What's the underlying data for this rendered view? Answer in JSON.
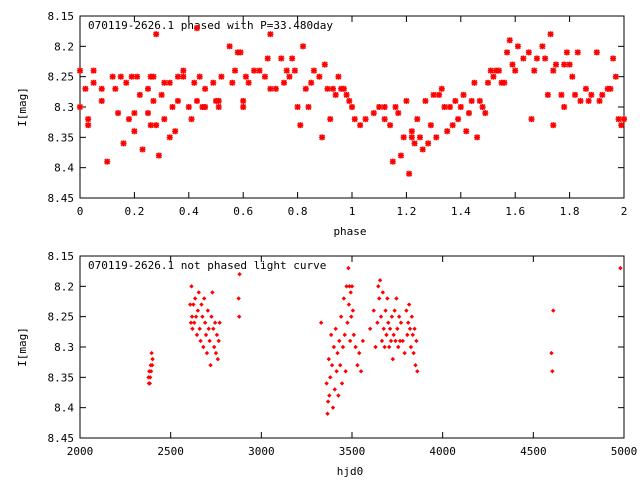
{
  "chart_data": [
    {
      "type": "scatter",
      "title": "070119-2626.1 phased with P=33.480day",
      "xlabel": "phase",
      "ylabel": "I[mag]",
      "xlim": [
        0,
        2
      ],
      "ylim": [
        8.15,
        8.45
      ],
      "y_inverted": true,
      "xticks": [
        "0",
        "0.2",
        "0.4",
        "0.6",
        "0.8",
        "1",
        "1.2",
        "1.4",
        "1.6",
        "1.8",
        "2"
      ],
      "yticks": [
        "8.15",
        "8.2",
        "8.25",
        "8.3",
        "8.35",
        "8.4",
        "8.45"
      ],
      "marker_color": "#ff0000",
      "marker": "asterisk",
      "points": [
        [
          0.0,
          8.3
        ],
        [
          0.0,
          8.24
        ],
        [
          0.02,
          8.27
        ],
        [
          0.03,
          8.32
        ],
        [
          0.03,
          8.33
        ],
        [
          0.05,
          8.26
        ],
        [
          0.05,
          8.24
        ],
        [
          0.08,
          8.29
        ],
        [
          0.08,
          8.27
        ],
        [
          0.1,
          8.39
        ],
        [
          0.12,
          8.25
        ],
        [
          0.13,
          8.27
        ],
        [
          0.14,
          8.31
        ],
        [
          0.15,
          8.25
        ],
        [
          0.16,
          8.36
        ],
        [
          0.17,
          8.26
        ],
        [
          0.18,
          8.32
        ],
        [
          0.19,
          8.25
        ],
        [
          0.2,
          8.31
        ],
        [
          0.2,
          8.34
        ],
        [
          0.21,
          8.25
        ],
        [
          0.22,
          8.28
        ],
        [
          0.23,
          8.37
        ],
        [
          0.25,
          8.31
        ],
        [
          0.25,
          8.27
        ],
        [
          0.26,
          8.33
        ],
        [
          0.26,
          8.25
        ],
        [
          0.27,
          8.25
        ],
        [
          0.27,
          8.29
        ],
        [
          0.28,
          8.33
        ],
        [
          0.28,
          8.18
        ],
        [
          0.29,
          8.38
        ],
        [
          0.3,
          8.28
        ],
        [
          0.31,
          8.32
        ],
        [
          0.31,
          8.26
        ],
        [
          0.33,
          8.35
        ],
        [
          0.33,
          8.26
        ],
        [
          0.34,
          8.3
        ],
        [
          0.35,
          8.34
        ],
        [
          0.36,
          8.29
        ],
        [
          0.36,
          8.25
        ],
        [
          0.38,
          8.25
        ],
        [
          0.38,
          8.24
        ],
        [
          0.4,
          8.3
        ],
        [
          0.41,
          8.32
        ],
        [
          0.42,
          8.26
        ],
        [
          0.43,
          8.17
        ],
        [
          0.43,
          8.29
        ],
        [
          0.44,
          8.25
        ],
        [
          0.45,
          8.3
        ],
        [
          0.46,
          8.27
        ],
        [
          0.46,
          8.3
        ],
        [
          0.49,
          8.26
        ],
        [
          0.5,
          8.29
        ],
        [
          0.51,
          8.29
        ],
        [
          0.51,
          8.3
        ],
        [
          0.52,
          8.25
        ],
        [
          0.55,
          8.2
        ],
        [
          0.56,
          8.26
        ],
        [
          0.57,
          8.24
        ],
        [
          0.58,
          8.21
        ],
        [
          0.59,
          8.21
        ],
        [
          0.6,
          8.29
        ],
        [
          0.6,
          8.3
        ],
        [
          0.61,
          8.25
        ],
        [
          0.62,
          8.26
        ],
        [
          0.64,
          8.24
        ],
        [
          0.66,
          8.24
        ],
        [
          0.68,
          8.25
        ],
        [
          0.69,
          8.22
        ],
        [
          0.7,
          8.27
        ],
        [
          0.7,
          8.18
        ],
        [
          0.72,
          8.27
        ],
        [
          0.74,
          8.22
        ],
        [
          0.75,
          8.26
        ],
        [
          0.76,
          8.24
        ],
        [
          0.77,
          8.25
        ],
        [
          0.78,
          8.22
        ],
        [
          0.79,
          8.24
        ],
        [
          0.8,
          8.3
        ],
        [
          0.81,
          8.33
        ],
        [
          0.82,
          8.2
        ],
        [
          0.83,
          8.27
        ],
        [
          0.84,
          8.3
        ],
        [
          0.85,
          8.26
        ],
        [
          0.86,
          8.24
        ],
        [
          0.88,
          8.25
        ],
        [
          0.89,
          8.35
        ],
        [
          0.9,
          8.23
        ],
        [
          0.91,
          8.27
        ],
        [
          0.92,
          8.32
        ],
        [
          0.93,
          8.27
        ],
        [
          0.94,
          8.28
        ],
        [
          0.95,
          8.25
        ],
        [
          0.96,
          8.27
        ],
        [
          0.97,
          8.27
        ],
        [
          0.98,
          8.28
        ],
        [
          0.99,
          8.29
        ],
        [
          1.0,
          8.3
        ],
        [
          1.01,
          8.32
        ],
        [
          1.03,
          8.33
        ],
        [
          1.05,
          8.32
        ],
        [
          1.08,
          8.31
        ],
        [
          1.1,
          8.3
        ],
        [
          1.12,
          8.3
        ],
        [
          1.12,
          8.32
        ],
        [
          1.14,
          8.33
        ],
        [
          1.15,
          8.39
        ],
        [
          1.16,
          8.3
        ],
        [
          1.17,
          8.31
        ],
        [
          1.18,
          8.38
        ],
        [
          1.19,
          8.35
        ],
        [
          1.2,
          8.29
        ],
        [
          1.21,
          8.41
        ],
        [
          1.22,
          8.35
        ],
        [
          1.22,
          8.34
        ],
        [
          1.23,
          8.36
        ],
        [
          1.24,
          8.32
        ],
        [
          1.25,
          8.35
        ],
        [
          1.26,
          8.37
        ],
        [
          1.27,
          8.29
        ],
        [
          1.28,
          8.36
        ],
        [
          1.29,
          8.33
        ],
        [
          1.3,
          8.28
        ],
        [
          1.31,
          8.35
        ],
        [
          1.32,
          8.28
        ],
        [
          1.33,
          8.27
        ],
        [
          1.34,
          8.3
        ],
        [
          1.35,
          8.34
        ],
        [
          1.36,
          8.3
        ],
        [
          1.37,
          8.33
        ],
        [
          1.38,
          8.29
        ],
        [
          1.39,
          8.32
        ],
        [
          1.4,
          8.3
        ],
        [
          1.41,
          8.28
        ],
        [
          1.42,
          8.34
        ],
        [
          1.43,
          8.31
        ],
        [
          1.44,
          8.29
        ],
        [
          1.45,
          8.26
        ],
        [
          1.46,
          8.35
        ],
        [
          1.47,
          8.29
        ],
        [
          1.48,
          8.3
        ],
        [
          1.49,
          8.31
        ],
        [
          1.5,
          8.26
        ],
        [
          1.51,
          8.24
        ],
        [
          1.52,
          8.25
        ],
        [
          1.53,
          8.24
        ],
        [
          1.54,
          8.24
        ],
        [
          1.55,
          8.26
        ],
        [
          1.56,
          8.26
        ],
        [
          1.57,
          8.21
        ],
        [
          1.58,
          8.19
        ],
        [
          1.59,
          8.23
        ],
        [
          1.6,
          8.24
        ],
        [
          1.61,
          8.2
        ],
        [
          1.63,
          8.22
        ],
        [
          1.65,
          8.21
        ],
        [
          1.66,
          8.32
        ],
        [
          1.67,
          8.24
        ],
        [
          1.68,
          8.22
        ],
        [
          1.7,
          8.2
        ],
        [
          1.71,
          8.22
        ],
        [
          1.72,
          8.28
        ],
        [
          1.73,
          8.18
        ],
        [
          1.74,
          8.24
        ],
        [
          1.74,
          8.33
        ],
        [
          1.75,
          8.23
        ],
        [
          1.77,
          8.28
        ],
        [
          1.78,
          8.3
        ],
        [
          1.78,
          8.23
        ],
        [
          1.79,
          8.21
        ],
        [
          1.8,
          8.23
        ],
        [
          1.81,
          8.25
        ],
        [
          1.82,
          8.28
        ],
        [
          1.83,
          8.21
        ],
        [
          1.84,
          8.29
        ],
        [
          1.86,
          8.27
        ],
        [
          1.87,
          8.29
        ],
        [
          1.88,
          8.28
        ],
        [
          1.9,
          8.21
        ],
        [
          1.91,
          8.29
        ],
        [
          1.92,
          8.28
        ],
        [
          1.94,
          8.27
        ],
        [
          1.95,
          8.27
        ],
        [
          1.96,
          8.22
        ],
        [
          1.97,
          8.25
        ],
        [
          1.98,
          8.32
        ],
        [
          1.99,
          8.33
        ],
        [
          2.0,
          8.32
        ]
      ]
    },
    {
      "type": "scatter",
      "title": "070119-2626.1 not phased light curve",
      "xlabel": "hjd0",
      "ylabel": "I[mag]",
      "xlim": [
        2000,
        5000
      ],
      "ylim": [
        8.15,
        8.45
      ],
      "y_inverted": true,
      "xticks": [
        "2000",
        "2500",
        "3000",
        "3500",
        "4000",
        "4500",
        "5000"
      ],
      "yticks": [
        "8.15",
        "8.2",
        "8.25",
        "8.3",
        "8.35",
        "8.4",
        "8.45"
      ],
      "marker_color": "#ff0000",
      "marker": "diamond",
      "points": [
        [
          2378,
          8.35
        ],
        [
          2380,
          8.36
        ],
        [
          2382,
          8.34
        ],
        [
          2385,
          8.36
        ],
        [
          2387,
          8.35
        ],
        [
          2390,
          8.33
        ],
        [
          2392,
          8.34
        ],
        [
          2395,
          8.31
        ],
        [
          2398,
          8.33
        ],
        [
          2400,
          8.32
        ],
        [
          2608,
          8.23
        ],
        [
          2612,
          8.26
        ],
        [
          2615,
          8.2
        ],
        [
          2618,
          8.25
        ],
        [
          2620,
          8.27
        ],
        [
          2625,
          8.23
        ],
        [
          2630,
          8.26
        ],
        [
          2635,
          8.22
        ],
        [
          2640,
          8.25
        ],
        [
          2645,
          8.28
        ],
        [
          2650,
          8.24
        ],
        [
          2655,
          8.21
        ],
        [
          2660,
          8.27
        ],
        [
          2665,
          8.29
        ],
        [
          2670,
          8.23
        ],
        [
          2675,
          8.25
        ],
        [
          2680,
          8.3
        ],
        [
          2685,
          8.22
        ],
        [
          2690,
          8.26
        ],
        [
          2695,
          8.28
        ],
        [
          2700,
          8.31
        ],
        [
          2705,
          8.24
        ],
        [
          2710,
          8.27
        ],
        [
          2715,
          8.29
        ],
        [
          2720,
          8.33
        ],
        [
          2725,
          8.25
        ],
        [
          2730,
          8.21
        ],
        [
          2735,
          8.27
        ],
        [
          2740,
          8.3
        ],
        [
          2745,
          8.26
        ],
        [
          2750,
          8.31
        ],
        [
          2755,
          8.28
        ],
        [
          2760,
          8.32
        ],
        [
          2765,
          8.29
        ],
        [
          2770,
          8.26
        ],
        [
          2875,
          8.22
        ],
        [
          2878,
          8.25
        ],
        [
          2880,
          8.18
        ],
        [
          3330,
          8.26
        ],
        [
          3360,
          8.36
        ],
        [
          3365,
          8.41
        ],
        [
          3368,
          8.39
        ],
        [
          3372,
          8.32
        ],
        [
          3375,
          8.38
        ],
        [
          3380,
          8.35
        ],
        [
          3385,
          8.28
        ],
        [
          3390,
          8.33
        ],
        [
          3395,
          8.4
        ],
        [
          3400,
          8.3
        ],
        [
          3405,
          8.37
        ],
        [
          3410,
          8.27
        ],
        [
          3415,
          8.34
        ],
        [
          3420,
          8.31
        ],
        [
          3425,
          8.38
        ],
        [
          3430,
          8.29
        ],
        [
          3435,
          8.33
        ],
        [
          3440,
          8.25
        ],
        [
          3445,
          8.36
        ],
        [
          3450,
          8.3
        ],
        [
          3455,
          8.22
        ],
        [
          3460,
          8.28
        ],
        [
          3465,
          8.34
        ],
        [
          3470,
          8.2
        ],
        [
          3475,
          8.26
        ],
        [
          3480,
          8.17
        ],
        [
          3483,
          8.23
        ],
        [
          3486,
          8.2
        ],
        [
          3490,
          8.29
        ],
        [
          3493,
          8.21
        ],
        [
          3496,
          8.25
        ],
        [
          3500,
          8.2
        ],
        [
          3505,
          8.24
        ],
        [
          3510,
          8.28
        ],
        [
          3520,
          8.3
        ],
        [
          3530,
          8.33
        ],
        [
          3540,
          8.31
        ],
        [
          3550,
          8.34
        ],
        [
          3560,
          8.29
        ],
        [
          3600,
          8.27
        ],
        [
          3620,
          8.24
        ],
        [
          3630,
          8.3
        ],
        [
          3640,
          8.26
        ],
        [
          3645,
          8.2
        ],
        [
          3650,
          8.22
        ],
        [
          3655,
          8.19
        ],
        [
          3660,
          8.25
        ],
        [
          3665,
          8.29
        ],
        [
          3670,
          8.21
        ],
        [
          3675,
          8.27
        ],
        [
          3680,
          8.3
        ],
        [
          3685,
          8.24
        ],
        [
          3690,
          8.28
        ],
        [
          3695,
          8.22
        ],
        [
          3700,
          8.26
        ],
        [
          3705,
          8.3
        ],
        [
          3710,
          8.27
        ],
        [
          3715,
          8.29
        ],
        [
          3720,
          8.25
        ],
        [
          3725,
          8.32
        ],
        [
          3730,
          8.28
        ],
        [
          3735,
          8.24
        ],
        [
          3740,
          8.29
        ],
        [
          3745,
          8.22
        ],
        [
          3750,
          8.27
        ],
        [
          3755,
          8.3
        ],
        [
          3760,
          8.25
        ],
        [
          3765,
          8.29
        ],
        [
          3770,
          8.26
        ],
        [
          3780,
          8.29
        ],
        [
          3790,
          8.31
        ],
        [
          3800,
          8.24
        ],
        [
          3805,
          8.28
        ],
        [
          3810,
          8.26
        ],
        [
          3815,
          8.23
        ],
        [
          3820,
          8.27
        ],
        [
          3825,
          8.3
        ],
        [
          3830,
          8.25
        ],
        [
          3835,
          8.28
        ],
        [
          3840,
          8.31
        ],
        [
          3845,
          8.27
        ],
        [
          3850,
          8.33
        ],
        [
          3855,
          8.29
        ],
        [
          3860,
          8.34
        ],
        [
          4600,
          8.31
        ],
        [
          4605,
          8.34
        ],
        [
          4610,
          8.24
        ],
        [
          4980,
          8.17
        ]
      ]
    }
  ]
}
